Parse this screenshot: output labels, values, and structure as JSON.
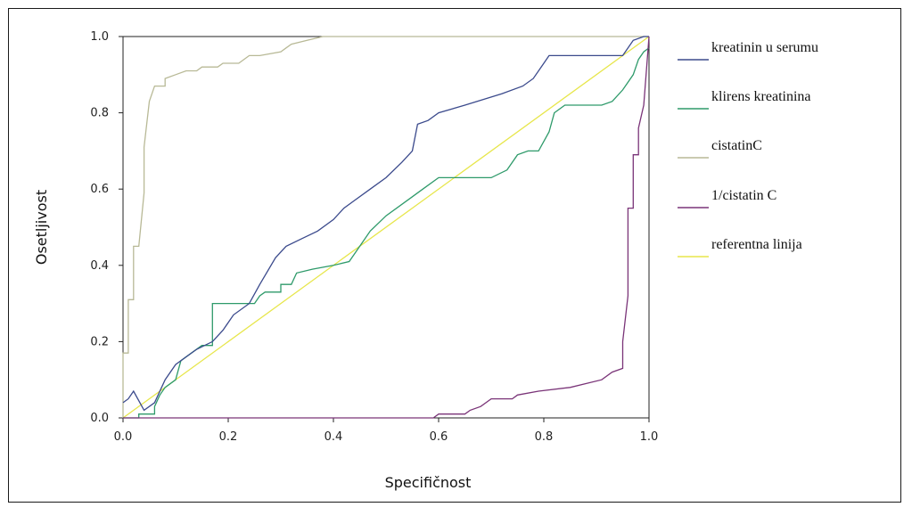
{
  "chart_data": {
    "type": "line",
    "title": "",
    "xlabel": "Specifičnost",
    "ylabel": "Osetljivost",
    "xlim": [
      0,
      1
    ],
    "ylim": [
      0,
      1
    ],
    "xticks": [
      "0.0",
      "0.2",
      "0.4",
      "0.6",
      "0.8",
      "1.0"
    ],
    "yticks": [
      "0.0",
      "0.2",
      "0.4",
      "0.6",
      "0.8",
      "1.0"
    ],
    "grid": false,
    "legend_position": "right",
    "series": [
      {
        "name": "kreatinin u serumu",
        "color": "#3b4a8c",
        "points": [
          [
            0,
            0.04
          ],
          [
            0.01,
            0.05
          ],
          [
            0.02,
            0.07
          ],
          [
            0.04,
            0.02
          ],
          [
            0.06,
            0.04
          ],
          [
            0.08,
            0.1
          ],
          [
            0.1,
            0.14
          ],
          [
            0.12,
            0.16
          ],
          [
            0.14,
            0.18
          ],
          [
            0.17,
            0.2
          ],
          [
            0.19,
            0.23
          ],
          [
            0.21,
            0.27
          ],
          [
            0.24,
            0.3
          ],
          [
            0.26,
            0.35
          ],
          [
            0.29,
            0.42
          ],
          [
            0.31,
            0.45
          ],
          [
            0.34,
            0.47
          ],
          [
            0.37,
            0.49
          ],
          [
            0.4,
            0.52
          ],
          [
            0.42,
            0.55
          ],
          [
            0.44,
            0.57
          ],
          [
            0.47,
            0.6
          ],
          [
            0.5,
            0.63
          ],
          [
            0.53,
            0.67
          ],
          [
            0.55,
            0.7
          ],
          [
            0.56,
            0.77
          ],
          [
            0.58,
            0.78
          ],
          [
            0.6,
            0.8
          ],
          [
            0.65,
            0.82
          ],
          [
            0.72,
            0.85
          ],
          [
            0.76,
            0.87
          ],
          [
            0.78,
            0.89
          ],
          [
            0.8,
            0.93
          ],
          [
            0.81,
            0.95
          ],
          [
            0.85,
            0.95
          ],
          [
            0.91,
            0.95
          ],
          [
            0.95,
            0.95
          ],
          [
            0.97,
            0.99
          ],
          [
            0.99,
            1.0
          ],
          [
            1.0,
            1.0
          ]
        ]
      },
      {
        "name": "klirens kreatinina",
        "color": "#2e9a6a",
        "points": [
          [
            0,
            0
          ],
          [
            0.03,
            0
          ],
          [
            0.03,
            0.01
          ],
          [
            0.06,
            0.01
          ],
          [
            0.06,
            0.03
          ],
          [
            0.07,
            0.06
          ],
          [
            0.08,
            0.08
          ],
          [
            0.1,
            0.1
          ],
          [
            0.11,
            0.15
          ],
          [
            0.13,
            0.17
          ],
          [
            0.15,
            0.19
          ],
          [
            0.17,
            0.19
          ],
          [
            0.17,
            0.3
          ],
          [
            0.22,
            0.3
          ],
          [
            0.25,
            0.3
          ],
          [
            0.26,
            0.32
          ],
          [
            0.27,
            0.33
          ],
          [
            0.3,
            0.33
          ],
          [
            0.3,
            0.35
          ],
          [
            0.32,
            0.35
          ],
          [
            0.33,
            0.38
          ],
          [
            0.36,
            0.39
          ],
          [
            0.4,
            0.4
          ],
          [
            0.43,
            0.41
          ],
          [
            0.44,
            0.43
          ],
          [
            0.47,
            0.49
          ],
          [
            0.5,
            0.53
          ],
          [
            0.55,
            0.58
          ],
          [
            0.57,
            0.6
          ],
          [
            0.6,
            0.63
          ],
          [
            0.66,
            0.63
          ],
          [
            0.7,
            0.63
          ],
          [
            0.73,
            0.65
          ],
          [
            0.75,
            0.69
          ],
          [
            0.77,
            0.7
          ],
          [
            0.79,
            0.7
          ],
          [
            0.81,
            0.75
          ],
          [
            0.82,
            0.8
          ],
          [
            0.84,
            0.82
          ],
          [
            0.91,
            0.82
          ],
          [
            0.93,
            0.83
          ],
          [
            0.95,
            0.86
          ],
          [
            0.97,
            0.9
          ],
          [
            0.98,
            0.94
          ],
          [
            0.99,
            0.96
          ],
          [
            1.0,
            0.97
          ]
        ]
      },
      {
        "name": "cistatinC",
        "color": "#b8b996",
        "points": [
          [
            0,
            0
          ],
          [
            0,
            0.17
          ],
          [
            0.01,
            0.17
          ],
          [
            0.01,
            0.31
          ],
          [
            0.02,
            0.31
          ],
          [
            0.02,
            0.45
          ],
          [
            0.03,
            0.45
          ],
          [
            0.04,
            0.59
          ],
          [
            0.04,
            0.71
          ],
          [
            0.05,
            0.83
          ],
          [
            0.06,
            0.87
          ],
          [
            0.08,
            0.87
          ],
          [
            0.08,
            0.89
          ],
          [
            0.1,
            0.9
          ],
          [
            0.12,
            0.91
          ],
          [
            0.14,
            0.91
          ],
          [
            0.15,
            0.92
          ],
          [
            0.18,
            0.92
          ],
          [
            0.19,
            0.93
          ],
          [
            0.22,
            0.93
          ],
          [
            0.24,
            0.95
          ],
          [
            0.26,
            0.95
          ],
          [
            0.3,
            0.96
          ],
          [
            0.31,
            0.97
          ],
          [
            0.32,
            0.98
          ],
          [
            0.35,
            0.99
          ],
          [
            0.38,
            1.0
          ],
          [
            0.42,
            1.0
          ],
          [
            0.6,
            1.0
          ],
          [
            0.8,
            1.0
          ],
          [
            1.0,
            1.0
          ]
        ]
      },
      {
        "name": "1/cistatin C",
        "color": "#7a3478",
        "points": [
          [
            0,
            0
          ],
          [
            0.57,
            0
          ],
          [
            0.59,
            0
          ],
          [
            0.6,
            0.01
          ],
          [
            0.65,
            0.01
          ],
          [
            0.66,
            0.02
          ],
          [
            0.68,
            0.03
          ],
          [
            0.7,
            0.05
          ],
          [
            0.74,
            0.05
          ],
          [
            0.75,
            0.06
          ],
          [
            0.79,
            0.07
          ],
          [
            0.85,
            0.08
          ],
          [
            0.88,
            0.09
          ],
          [
            0.91,
            0.1
          ],
          [
            0.93,
            0.12
          ],
          [
            0.95,
            0.13
          ],
          [
            0.95,
            0.2
          ],
          [
            0.96,
            0.32
          ],
          [
            0.96,
            0.55
          ],
          [
            0.97,
            0.55
          ],
          [
            0.97,
            0.69
          ],
          [
            0.98,
            0.69
          ],
          [
            0.98,
            0.76
          ],
          [
            0.99,
            0.82
          ],
          [
            1.0,
            1.0
          ]
        ]
      },
      {
        "name": "referentna linija",
        "color": "#e7e64a",
        "points": [
          [
            0,
            0
          ],
          [
            1,
            1
          ]
        ]
      }
    ]
  }
}
